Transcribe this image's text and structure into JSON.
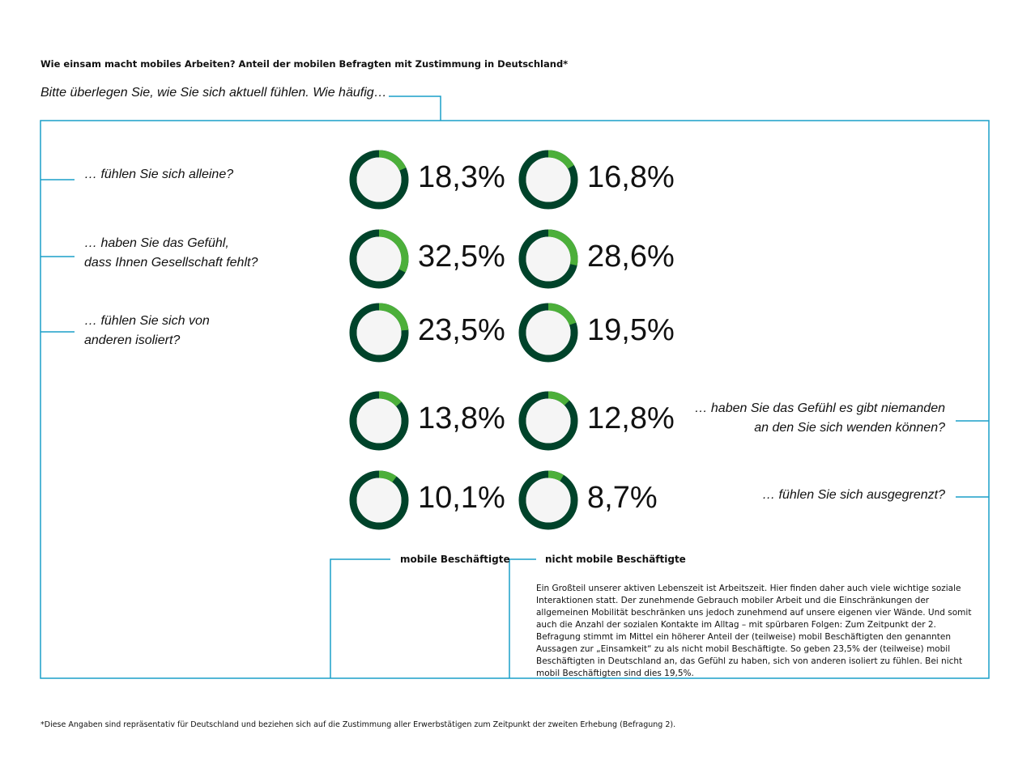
{
  "title": "Wie einsam macht mobiles Arbeiten? Anteil der mobilen Befragten mit Zustimmung in Deutschland*",
  "subtitle": "Bitte überlegen Sie, wie Sie sich aktuell fühlen. Wie häufig…",
  "colors": {
    "agree": "#4caf3a",
    "rest": "#00432a",
    "center": "#f5f5f5",
    "line": "#1a9fc9"
  },
  "chart_data": {
    "type": "pie",
    "series": [
      {
        "name": "mobile Beschäftigte",
        "values": [
          18.3,
          32.5,
          23.5,
          13.8,
          10.1
        ],
        "labels": [
          "18,3%",
          "32,5%",
          "23,5%",
          "13,8%",
          "10,1%"
        ]
      },
      {
        "name": "nicht mobile Beschäftigte",
        "values": [
          16.8,
          28.6,
          19.5,
          12.8,
          8.7
        ],
        "labels": [
          "16,8%",
          "28,6%",
          "19,5%",
          "12,8%",
          "8,7%"
        ]
      }
    ],
    "categories": [
      [
        "… fühlen Sie sich alleine?"
      ],
      [
        "… haben Sie das Gefühl,",
        "dass Ihnen Gesellschaft fehlt?"
      ],
      [
        "… fühlen Sie sich von",
        "anderen isoliert?"
      ],
      [
        "… haben Sie das Gefühl es gibt niemanden",
        "an den Sie sich wenden können?"
      ],
      [
        "… fühlen Sie sich ausgegrenzt?"
      ]
    ]
  },
  "legend": {
    "mobile": "mobile Beschäftigte",
    "non_mobile": "nicht mobile Beschäftigte"
  },
  "paragraph": "Ein Großteil unserer aktiven Lebenszeit ist Arbeitszeit. Hier finden daher auch viele wichtige soziale Interaktionen statt. Der zunehmende Gebrauch mobiler Arbeit und die Einschränkungen der allgemeinen Mobilität beschränken uns jedoch zunehmend auf unsere eigenen vier Wände. Und somit auch die Anzahl der sozialen Kontakte im Alltag – mit spürbaren Folgen: Zum Zeitpunkt der 2. Befragung stimmt im Mittel ein höherer Anteil der (teilweise) mobil Beschäftigten den genannten Aussagen zur „Einsamkeit“ zu als nicht mobil Beschäftigte. So geben 23,5% der (teilweise) mobil Beschäftigten in Deutschland an, das Gefühl zu haben, sich von anderen isoliert zu fühlen. Bei nicht mobil Beschäftigten sind dies 19,5%.",
  "footnote": "*Diese Angaben sind repräsentativ für Deutschland und beziehen sich auf die Zustimmung aller Erwerbstätigen zum Zeitpunkt der zweiten Erhebung (Befragung 2)."
}
